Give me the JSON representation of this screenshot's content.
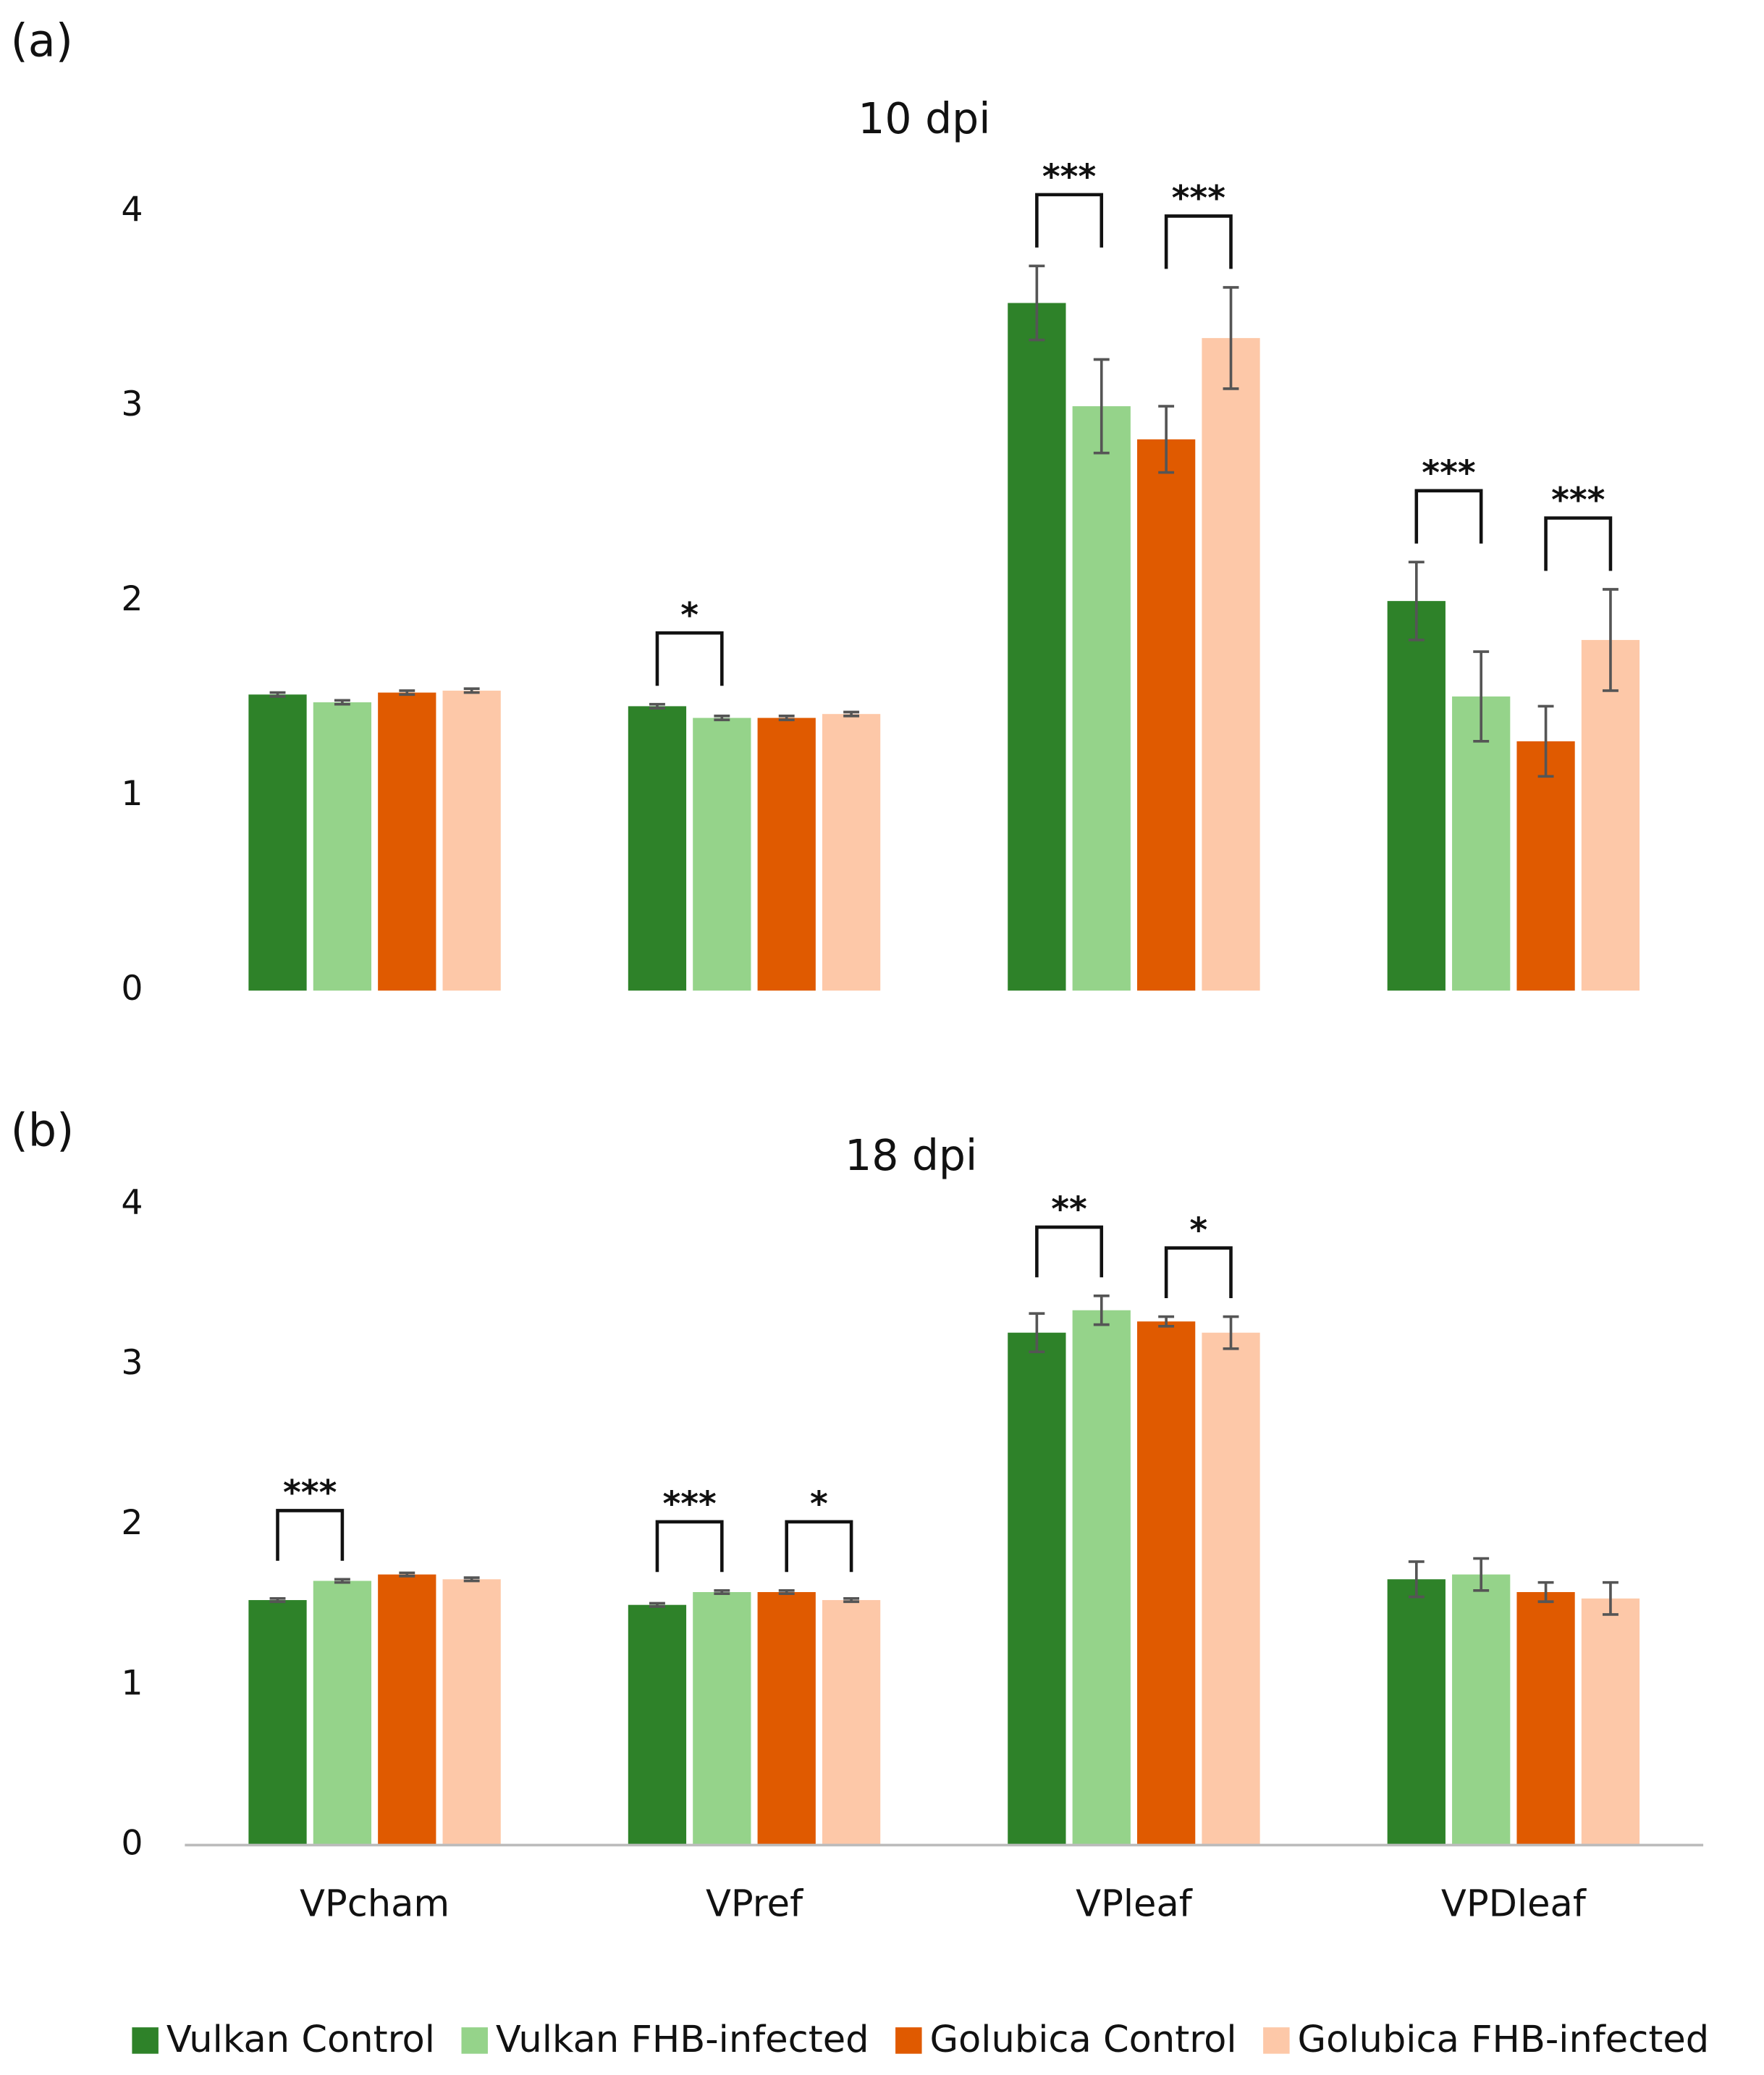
{
  "chart_data": [
    {
      "type": "bar",
      "panel": "(a)",
      "title": "10 dpi",
      "categories": [
        "VPcham",
        "VPref",
        "VPleaf",
        "VPDleaf"
      ],
      "series": [
        {
          "name": "Vulkan Control",
          "color": "#2e8229",
          "values": [
            1.52,
            1.46,
            3.53,
            2.0
          ],
          "errors": [
            0.01,
            0.01,
            0.19,
            0.2
          ]
        },
        {
          "name": "Vulkan FHB-infected",
          "color": "#95d38a",
          "values": [
            1.48,
            1.4,
            3.0,
            1.51
          ],
          "errors": [
            0.01,
            0.01,
            0.24,
            0.23
          ]
        },
        {
          "name": "Golubica Control",
          "color": "#e05a00",
          "values": [
            1.53,
            1.4,
            2.83,
            1.28
          ],
          "errors": [
            0.01,
            0.01,
            0.17,
            0.18
          ]
        },
        {
          "name": "Golubica FHB-infected",
          "color": "#fdc8a8",
          "values": [
            1.54,
            1.42,
            3.35,
            1.8
          ],
          "errors": [
            0.01,
            0.01,
            0.26,
            0.26
          ]
        }
      ],
      "brackets": [
        {
          "category": "VPref",
          "from": "Vulkan Control",
          "to": "Vulkan FHB-infected",
          "label": "*"
        },
        {
          "category": "VPleaf",
          "from": "Vulkan Control",
          "to": "Vulkan FHB-infected",
          "label": "***"
        },
        {
          "category": "VPleaf",
          "from": "Golubica Control",
          "to": "Golubica FHB-infected",
          "label": "***"
        },
        {
          "category": "VPDleaf",
          "from": "Vulkan Control",
          "to": "Vulkan FHB-infected",
          "label": "***"
        },
        {
          "category": "VPDleaf",
          "from": "Golubica Control",
          "to": "Golubica FHB-infected",
          "label": "***"
        }
      ],
      "ylim": [
        0,
        4
      ],
      "yticks": [
        0,
        1,
        2,
        3,
        4
      ]
    },
    {
      "type": "bar",
      "panel": "(b)",
      "title": "18 dpi",
      "categories": [
        "VPcham",
        "VPref",
        "VPleaf",
        "VPDleaf"
      ],
      "series": [
        {
          "name": "Vulkan Control",
          "color": "#2e8229",
          "values": [
            1.53,
            1.5,
            3.2,
            1.66
          ],
          "errors": [
            0.01,
            0.01,
            0.12,
            0.11
          ]
        },
        {
          "name": "Vulkan FHB-infected",
          "color": "#95d38a",
          "values": [
            1.65,
            1.58,
            3.34,
            1.69
          ],
          "errors": [
            0.01,
            0.01,
            0.09,
            0.1
          ]
        },
        {
          "name": "Golubica Control",
          "color": "#e05a00",
          "values": [
            1.69,
            1.58,
            3.27,
            1.58
          ],
          "errors": [
            0.01,
            0.01,
            0.03,
            0.06
          ]
        },
        {
          "name": "Golubica FHB-infected",
          "color": "#fdc8a8",
          "values": [
            1.66,
            1.53,
            3.2,
            1.54
          ],
          "errors": [
            0.01,
            0.01,
            0.1,
            0.1
          ]
        }
      ],
      "brackets": [
        {
          "category": "VPcham",
          "from": "Vulkan Control",
          "to": "Vulkan FHB-infected",
          "label": "***"
        },
        {
          "category": "VPref",
          "from": "Vulkan Control",
          "to": "Vulkan FHB-infected",
          "label": "***"
        },
        {
          "category": "VPref",
          "from": "Golubica Control",
          "to": "Golubica FHB-infected",
          "label": "*"
        },
        {
          "category": "VPleaf",
          "from": "Vulkan Control",
          "to": "Vulkan FHB-infected",
          "label": "**"
        },
        {
          "category": "VPleaf",
          "from": "Golubica Control",
          "to": "Golubica FHB-infected",
          "label": "*"
        }
      ],
      "ylim": [
        0,
        4
      ],
      "yticks": [
        0,
        1,
        2,
        3,
        4
      ]
    }
  ]
}
